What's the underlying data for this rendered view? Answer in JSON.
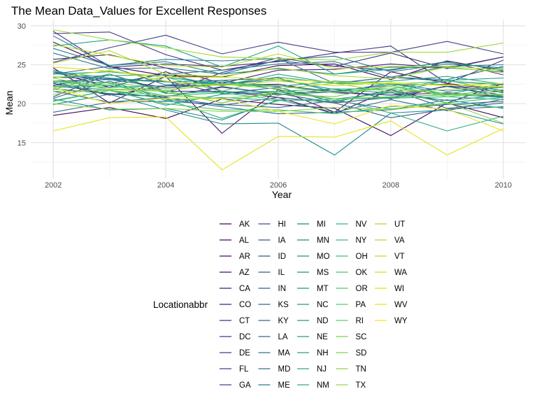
{
  "chart_data": {
    "type": "line",
    "title": "The Mean Data_Values for Excellent Responses",
    "xlabel": "Year",
    "ylabel": "Mean",
    "xlim": [
      2001.6,
      2010.4
    ],
    "ylim": [
      10.4,
      30.8
    ],
    "x_ticks": [
      2002,
      2004,
      2006,
      2008,
      2010
    ],
    "y_ticks": [
      15,
      20,
      25,
      30
    ],
    "grid": true,
    "legend_title": "Locationabbr",
    "legend_position": "bottom",
    "x": [
      2002,
      2003,
      2004,
      2005,
      2006,
      2007,
      2008,
      2009,
      2010
    ],
    "series": [
      {
        "name": "AK",
        "color": "#440154",
        "values": [
          27.9,
          24.8,
          23.6,
          23.4,
          24.9,
          25.1,
          23.1,
          25.5,
          24.2
        ]
      },
      {
        "name": "AL",
        "color": "#450659",
        "values": [
          18.5,
          19.5,
          18.1,
          20.6,
          19.9,
          19.4,
          15.9,
          20.1,
          18.2
        ]
      },
      {
        "name": "AR",
        "color": "#460A5D",
        "values": [
          24.1,
          22.1,
          24.1,
          21.6,
          20.8,
          18.7,
          21.8,
          20.1,
          22.6
        ]
      },
      {
        "name": "AZ",
        "color": "#470E61",
        "values": [
          24.6,
          20.1,
          23.5,
          16.2,
          21.8,
          18.9,
          24.1,
          22.6,
          21.7
        ]
      },
      {
        "name": "CA",
        "color": "#48186A",
        "values": [
          22.6,
          21.1,
          22.3,
          22.4,
          22.5,
          21.4,
          21.1,
          21.4,
          20.9
        ]
      },
      {
        "name": "CO",
        "color": "#481F70",
        "values": [
          25.7,
          26.3,
          24.6,
          22.6,
          24.3,
          24.4,
          25.1,
          24.6,
          26.0
        ]
      },
      {
        "name": "CT",
        "color": "#472D7B",
        "values": [
          29.3,
          24.7,
          25.1,
          24.8,
          25.4,
          26.5,
          27.4,
          22.6,
          25.6
        ]
      },
      {
        "name": "DC",
        "color": "#453581",
        "values": [
          29.0,
          29.2,
          26.3,
          24.3,
          25.5,
          24.8,
          26.5,
          24.5,
          26.0
        ]
      },
      {
        "name": "DE",
        "color": "#443A83",
        "values": [
          20.9,
          23.8,
          21.4,
          24.0,
          25.9,
          24.8,
          24.3,
          25.4,
          23.7
        ]
      },
      {
        "name": "FL",
        "color": "#424086",
        "values": [
          25.3,
          27.2,
          28.8,
          26.4,
          27.9,
          26.6,
          26.6,
          28.0,
          26.4
        ]
      },
      {
        "name": "GA",
        "color": "#404688",
        "values": [
          22.3,
          23.8,
          21.6,
          21.6,
          21.1,
          21.9,
          20.6,
          22.3,
          21.5
        ]
      },
      {
        "name": "HI",
        "color": "#3E4A89",
        "values": [
          22.9,
          23.1,
          22.1,
          22.4,
          23.4,
          22.6,
          23.4,
          22.9,
          22.4
        ]
      },
      {
        "name": "IA",
        "color": "#3B528B",
        "values": [
          22.8,
          21.2,
          20.9,
          22.2,
          21.2,
          21.5,
          21.1,
          22.2,
          21.1
        ]
      },
      {
        "name": "ID",
        "color": "#39558C",
        "values": [
          23.4,
          23.2,
          22.9,
          21.3,
          22.1,
          20.2,
          21.8,
          19.4,
          20.1
        ]
      },
      {
        "name": "IL",
        "color": "#375A8C",
        "values": [
          21.9,
          21.3,
          20.9,
          22.1,
          21.3,
          20.1,
          20.8,
          22.3,
          20.8
        ]
      },
      {
        "name": "IN",
        "color": "#355F8D",
        "values": [
          21.6,
          20.2,
          20.8,
          19.8,
          20.8,
          20.1,
          18.2,
          19.3,
          19.6
        ]
      },
      {
        "name": "KS",
        "color": "#33638D",
        "values": [
          23.8,
          24.8,
          22.4,
          22.8,
          22.3,
          21.6,
          22.4,
          22.5,
          21.4
        ]
      },
      {
        "name": "KY",
        "color": "#31688E",
        "values": [
          18.9,
          20.2,
          20.3,
          19.9,
          19.5,
          20.4,
          19.3,
          19.9,
          20.3
        ]
      },
      {
        "name": "LA",
        "color": "#2F6C8E",
        "values": [
          20.7,
          22.9,
          20.6,
          19.6,
          18.7,
          18.9,
          20.5,
          19.1,
          20.6
        ]
      },
      {
        "name": "MA",
        "color": "#2D718E",
        "values": [
          26.5,
          24.5,
          24.6,
          23.8,
          25.6,
          26.1,
          24.1,
          25.1,
          24.6
        ]
      },
      {
        "name": "MD",
        "color": "#2B758E",
        "values": [
          24.3,
          22.6,
          23.8,
          24.3,
          25.1,
          25.4,
          23.4,
          24.8,
          25.0
        ]
      },
      {
        "name": "ME",
        "color": "#29798E",
        "values": [
          27.1,
          24.9,
          25.7,
          25.5,
          25.8,
          22.6,
          23.4,
          23.1,
          24.8
        ]
      },
      {
        "name": "MI",
        "color": "#277D8E",
        "values": [
          23.9,
          23.1,
          22.8,
          23.0,
          23.3,
          21.5,
          22.6,
          21.6,
          22.1
        ]
      },
      {
        "name": "MN",
        "color": "#25848E",
        "values": [
          28.7,
          24.9,
          25.4,
          23.8,
          24.5,
          23.8,
          24.7,
          24.6,
          24.1
        ]
      },
      {
        "name": "MO",
        "color": "#23888E",
        "values": [
          20.6,
          19.2,
          19.4,
          17.9,
          20.5,
          18.9,
          19.2,
          20.5,
          19.4
        ]
      },
      {
        "name": "MS",
        "color": "#218C8D",
        "values": [
          19.9,
          21.2,
          19.2,
          17.4,
          17.5,
          13.4,
          18.8,
          19.2,
          17.4
        ]
      },
      {
        "name": "MT",
        "color": "#20928C",
        "values": [
          22.4,
          22.1,
          22.3,
          23.0,
          21.8,
          20.6,
          21.4,
          20.4,
          21.1
        ]
      },
      {
        "name": "NC",
        "color": "#1F978B",
        "values": [
          24.1,
          23.3,
          22.8,
          22.5,
          23.1,
          21.8,
          21.4,
          23.0,
          23.3
        ]
      },
      {
        "name": "ND",
        "color": "#1E9B8A",
        "values": [
          22.2,
          21.8,
          19.8,
          21.2,
          21.5,
          20.6,
          20.8,
          21.2,
          20.8
        ]
      },
      {
        "name": "NE",
        "color": "#1FA088",
        "values": [
          23.8,
          24.1,
          23.4,
          22.5,
          22.2,
          22.9,
          22.6,
          21.2,
          22.6
        ]
      },
      {
        "name": "NH",
        "color": "#21A585",
        "values": [
          27.4,
          28.2,
          27.4,
          24.7,
          27.4,
          23.8,
          24.4,
          25.3,
          24.4
        ]
      },
      {
        "name": "NJ",
        "color": "#24AA83",
        "values": [
          23.4,
          23.6,
          23.7,
          22.3,
          23.8,
          22.6,
          22.9,
          23.5,
          22.5
        ]
      },
      {
        "name": "NM",
        "color": "#28AE80",
        "values": [
          22.9,
          22.7,
          20.4,
          20.8,
          20.4,
          20.6,
          18.8,
          16.5,
          18.4
        ]
      },
      {
        "name": "NV",
        "color": "#2FB47C",
        "values": [
          20.3,
          21.7,
          20.6,
          18.1,
          20.4,
          20.6,
          20.7,
          20.9,
          20.5
        ]
      },
      {
        "name": "NY",
        "color": "#35B779",
        "values": [
          21.8,
          23.8,
          21.3,
          21.5,
          21.6,
          21.9,
          21.9,
          23.0,
          21.6
        ]
      },
      {
        "name": "OH",
        "color": "#3DBC74",
        "values": [
          22.2,
          22.4,
          21.0,
          21.4,
          20.5,
          20.3,
          21.6,
          20.1,
          20.8
        ]
      },
      {
        "name": "OK",
        "color": "#46C06F",
        "values": [
          20.4,
          21.7,
          20.0,
          19.2,
          19.2,
          18.7,
          19.6,
          20.0,
          19.5
        ]
      },
      {
        "name": "OR",
        "color": "#50C46A",
        "values": [
          22.7,
          22.4,
          23.4,
          21.6,
          23.4,
          22.6,
          22.5,
          22.9,
          22.5
        ]
      },
      {
        "name": "PA",
        "color": "#5AC864",
        "values": [
          22.9,
          22.3,
          21.7,
          20.1,
          21.5,
          21.5,
          21.9,
          21.3,
          21.1
        ]
      },
      {
        "name": "RI",
        "color": "#65CB5E",
        "values": [
          22.1,
          22.7,
          21.9,
          22.6,
          22.3,
          21.4,
          22.2,
          21.1,
          21.8
        ]
      },
      {
        "name": "SC",
        "color": "#70CF57",
        "values": [
          21.6,
          21.7,
          21.0,
          20.7,
          21.2,
          20.9,
          22.4,
          20.9,
          21.6
        ]
      },
      {
        "name": "SD",
        "color": "#7AD151",
        "values": [
          23.3,
          21.8,
          21.6,
          20.1,
          21.6,
          20.6,
          20.9,
          21.1,
          21.2
        ]
      },
      {
        "name": "TN",
        "color": "#86D549",
        "values": [
          20.0,
          19.3,
          19.4,
          19.0,
          19.0,
          19.5,
          19.2,
          20.1,
          17.5
        ]
      },
      {
        "name": "TX",
        "color": "#93D741",
        "values": [
          21.2,
          21.9,
          21.7,
          22.5,
          21.9,
          22.6,
          21.5,
          21.8,
          22.2
        ]
      },
      {
        "name": "UT",
        "color": "#9FDA3A",
        "values": [
          29.5,
          28.2,
          27.2,
          26.0,
          25.8,
          25.6,
          26.6,
          26.6,
          27.8
        ]
      },
      {
        "name": "VA",
        "color": "#ADDC30",
        "values": [
          25.2,
          26.8,
          23.8,
          23.5,
          24.6,
          23.6,
          23.2,
          24.7,
          24.0
        ]
      },
      {
        "name": "VT",
        "color": "#BADE27",
        "values": [
          27.6,
          26.2,
          24.9,
          24.7,
          26.4,
          24.5,
          24.8,
          24.8,
          24.3
        ]
      },
      {
        "name": "WA",
        "color": "#C8E020",
        "values": [
          23.3,
          24.3,
          22.9,
          22.3,
          22.9,
          22.3,
          22.7,
          22.3,
          22.6
        ]
      },
      {
        "name": "WI",
        "color": "#D8E219",
        "values": [
          24.7,
          24.2,
          23.4,
          23.4,
          23.1,
          22.8,
          22.6,
          22.4,
          22.2
        ]
      },
      {
        "name": "WV",
        "color": "#E5E419",
        "values": [
          16.5,
          18.2,
          18.3,
          11.5,
          15.8,
          15.7,
          17.8,
          13.4,
          16.8
        ]
      },
      {
        "name": "WY",
        "color": "#F1E51D",
        "values": [
          22.1,
          20.0,
          20.7,
          20.6,
          19.0,
          17.4,
          19.8,
          19.3,
          16.5
        ]
      }
    ]
  }
}
